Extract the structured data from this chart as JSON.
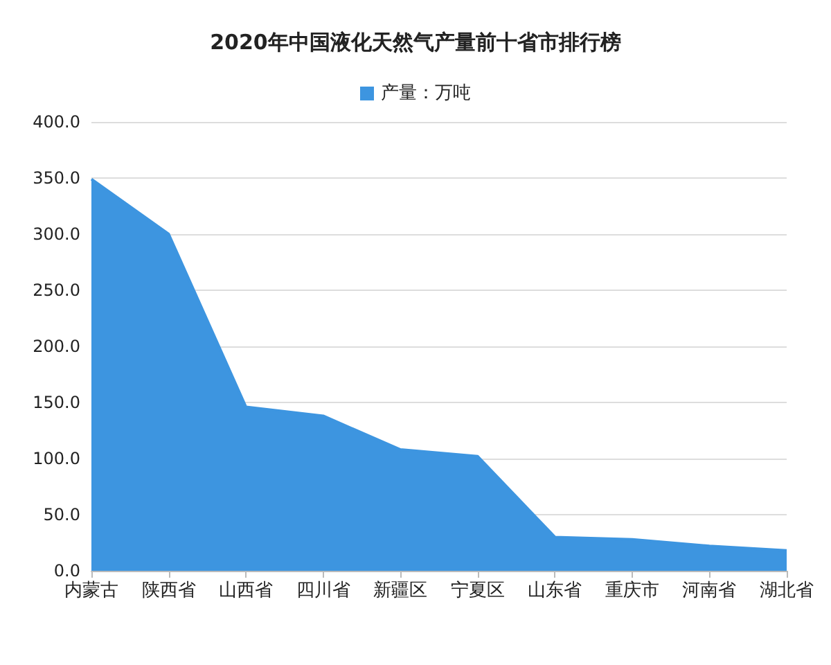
{
  "chart_data": {
    "type": "area",
    "title": "2020年中国液化天然气产量前十省市排行榜",
    "categories": [
      "内蒙古",
      "陕西省",
      "山西省",
      "四川省",
      "新疆区",
      "宁夏区",
      "山东省",
      "重庆市",
      "河南省",
      "湖北省"
    ],
    "series": [
      {
        "name": "产量：万吨",
        "color": "#3d95e0",
        "values": [
          349,
          300,
          146,
          138,
          108,
          102,
          30,
          28,
          22,
          18
        ]
      }
    ],
    "ylim": [
      0,
      400
    ],
    "yticks": [
      {
        "value": 0,
        "label": "0.0"
      },
      {
        "value": 50,
        "label": "50.0"
      },
      {
        "value": 100,
        "label": "100.0"
      },
      {
        "value": 150,
        "label": "150.0"
      },
      {
        "value": 200,
        "label": "200.0"
      },
      {
        "value": 250,
        "label": "250.0"
      },
      {
        "value": 300,
        "label": "300.0"
      },
      {
        "value": 350,
        "label": "350.0"
      },
      {
        "value": 400,
        "label": "400.0"
      }
    ],
    "grid": "y",
    "legend": "top"
  }
}
